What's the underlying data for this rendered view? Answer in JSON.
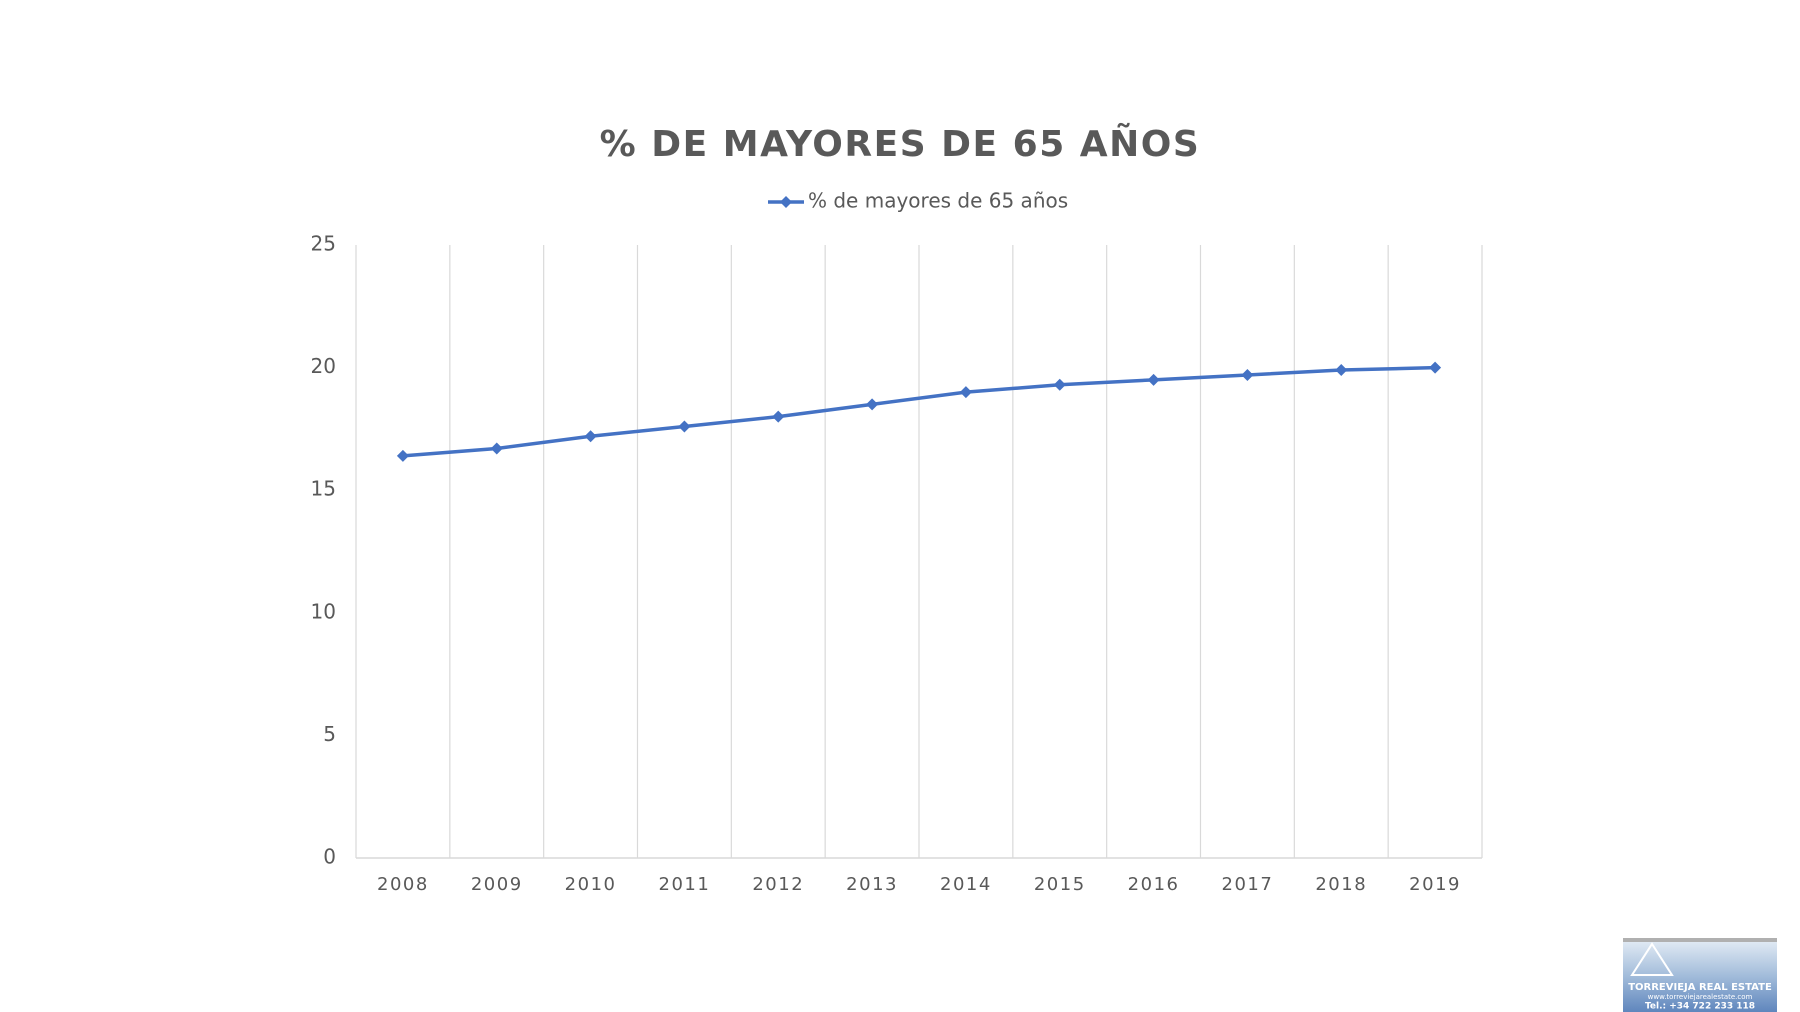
{
  "chart_data": {
    "type": "line",
    "title": "% DE MAYORES DE 65 AÑOS",
    "categories": [
      "2008",
      "2009",
      "2010",
      "2011",
      "2012",
      "2013",
      "2014",
      "2015",
      "2016",
      "2017",
      "2018",
      "2019"
    ],
    "series": [
      {
        "name": "% de mayores de 65 años",
        "color": "#4472c4",
        "values": [
          16.4,
          16.7,
          17.2,
          17.6,
          18.0,
          18.5,
          19.0,
          19.3,
          19.5,
          19.7,
          19.9,
          20.0
        ]
      }
    ],
    "ylim": [
      0,
      25
    ],
    "yticks": [
      0,
      5,
      10,
      15,
      20,
      25
    ],
    "grid": "x",
    "legend": "top"
  },
  "watermark": {
    "name": "TORREVIEJA REAL ESTATE",
    "url": "www.torreviejarealestate.com",
    "phone": "Tel.: +34 722 233 118"
  }
}
